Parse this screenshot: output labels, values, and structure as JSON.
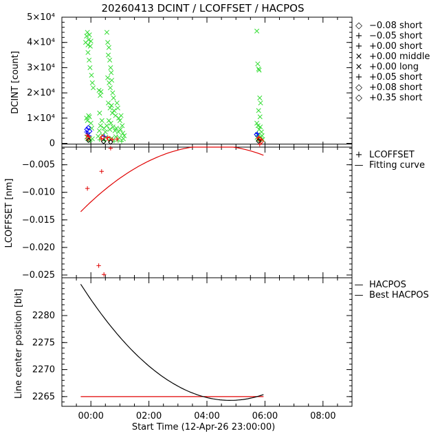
{
  "chart_data": [
    {
      "type": "scatter",
      "panel": "dcint",
      "title": "20260413 DCINT / LCOFFSET / HACPOS",
      "ylabel": "DCINT [count]",
      "ylim": [
        -1500,
        50000
      ],
      "xlim": [
        -1.0,
        9.0
      ],
      "yticks": [
        {
          "value": 0,
          "label": "0"
        },
        {
          "value": 10000,
          "label": "1×10⁴"
        },
        {
          "value": 20000,
          "label": "2×10⁴"
        },
        {
          "value": 30000,
          "label": "3×10⁴"
        },
        {
          "value": 40000,
          "label": "4×10⁴"
        },
        {
          "value": 50000,
          "label": "5×10⁴"
        }
      ],
      "legend": [
        {
          "symbol": "◇",
          "label": "−0.08 short",
          "color": "#0000ff"
        },
        {
          "symbol": "+",
          "label": "−0.05 short",
          "color": "#0000ff"
        },
        {
          "symbol": "+",
          "label": "+0.00 short",
          "color": "#00c800"
        },
        {
          "symbol": "×",
          "label": "+0.00 middle",
          "color": "#00c800"
        },
        {
          "symbol": "×",
          "label": "+0.00 long",
          "color": "#00c800"
        },
        {
          "symbol": "+",
          "label": "+0.05 short",
          "color": "#ff0000"
        },
        {
          "symbol": "◇",
          "label": "+0.08 short",
          "color": "#ff0000"
        },
        {
          "symbol": "◇",
          "label": "+0.35 short",
          "color": "#000000"
        }
      ],
      "series": [
        {
          "name": "+0.00 long",
          "marker": "x",
          "color": "#33dd33",
          "points": [
            [
              -0.18,
              40000
            ],
            [
              -0.15,
              42500
            ],
            [
              -0.12,
              44000
            ],
            [
              -0.1,
              39000
            ],
            [
              -0.08,
              41000
            ],
            [
              -0.05,
              43000
            ],
            [
              -0.02,
              38500
            ],
            [
              0.0,
              40500
            ],
            [
              -0.1,
              36000
            ],
            [
              -0.06,
              33000
            ],
            [
              -0.03,
              30000
            ],
            [
              0.02,
              27000
            ],
            [
              0.05,
              24000
            ],
            [
              0.08,
              22000
            ],
            [
              -0.15,
              10000
            ],
            [
              -0.12,
              9000
            ],
            [
              -0.08,
              11000
            ],
            [
              -0.05,
              10500
            ],
            [
              0.0,
              8000
            ],
            [
              0.03,
              6000
            ],
            [
              0.28,
              21000
            ],
            [
              0.32,
              19000
            ],
            [
              0.35,
              20500
            ],
            [
              0.38,
              9000
            ],
            [
              0.3,
              12000
            ],
            [
              0.33,
              7000
            ],
            [
              0.29,
              5000
            ],
            [
              0.55,
              44000
            ],
            [
              0.58,
              40000
            ],
            [
              0.62,
              38000
            ],
            [
              0.6,
              35000
            ],
            [
              0.65,
              33000
            ],
            [
              0.68,
              30000
            ],
            [
              0.7,
              28000
            ],
            [
              0.58,
              26000
            ],
            [
              0.63,
              24000
            ],
            [
              0.67,
              22000
            ],
            [
              0.72,
              25000
            ],
            [
              0.75,
              20000
            ],
            [
              0.78,
              18000
            ],
            [
              0.6,
              16000
            ],
            [
              0.66,
              14000
            ],
            [
              0.71,
              15000
            ],
            [
              0.74,
              12000
            ],
            [
              0.8,
              13000
            ],
            [
              0.85,
              11000
            ],
            [
              0.9,
              16000
            ],
            [
              0.93,
              14000
            ],
            [
              0.96,
              10000
            ],
            [
              1.0,
              9000
            ],
            [
              1.04,
              11000
            ],
            [
              1.08,
              7000
            ],
            [
              0.62,
              9000
            ],
            [
              0.69,
              8000
            ],
            [
              0.76,
              6500
            ],
            [
              0.83,
              5000
            ],
            [
              0.88,
              6000
            ],
            [
              0.95,
              4500
            ],
            [
              1.02,
              5500
            ],
            [
              1.1,
              4000
            ],
            [
              1.15,
              3000
            ],
            [
              0.45,
              6000
            ],
            [
              0.5,
              4500
            ],
            [
              0.55,
              7000
            ],
            [
              0.65,
              5500
            ],
            [
              5.72,
              44500
            ],
            [
              5.75,
              31500
            ],
            [
              5.78,
              29500
            ],
            [
              5.8,
              29000
            ],
            [
              5.82,
              18000
            ],
            [
              5.85,
              16000
            ],
            [
              5.78,
              13000
            ],
            [
              5.83,
              10500
            ],
            [
              5.72,
              8000
            ],
            [
              5.76,
              7000
            ],
            [
              5.8,
              5500
            ],
            [
              5.84,
              6500
            ],
            [
              5.88,
              4500
            ],
            [
              5.74,
              3500
            ],
            [
              5.9,
              3000
            ]
          ]
        },
        {
          "name": "+0.00 middle",
          "marker": "x",
          "color": "#33dd33",
          "points": [
            [
              -0.14,
              2500
            ],
            [
              -0.09,
              3500
            ],
            [
              -0.04,
              2000
            ],
            [
              0.05,
              1800
            ],
            [
              0.25,
              2800
            ],
            [
              0.4,
              3200
            ],
            [
              0.52,
              2400
            ],
            [
              0.72,
              2000
            ],
            [
              0.86,
              2600
            ],
            [
              0.98,
              2200
            ],
            [
              1.12,
              1800
            ],
            [
              5.73,
              2400
            ],
            [
              5.79,
              2000
            ],
            [
              5.86,
              2600
            ],
            [
              5.92,
              1500
            ]
          ]
        },
        {
          "name": "+0.00 short",
          "marker": "+",
          "color": "#33dd33",
          "points": [
            [
              -0.12,
              1200
            ],
            [
              -0.02,
              900
            ],
            [
              0.3,
              1400
            ],
            [
              0.48,
              1100
            ],
            [
              0.64,
              1300
            ],
            [
              0.8,
              900
            ],
            [
              0.94,
              1000
            ],
            [
              1.06,
              800
            ],
            [
              5.76,
              1300
            ],
            [
              5.84,
              900
            ]
          ]
        },
        {
          "name": "-0.05 short",
          "marker": "+",
          "color": "#0000ff",
          "points": [
            [
              -0.16,
              4500
            ],
            [
              -0.11,
              3800
            ],
            [
              -0.06,
              3000
            ],
            [
              0.46,
              2800
            ],
            [
              5.74,
              3800
            ]
          ]
        },
        {
          "name": "-0.08 short",
          "marker": "diamond",
          "color": "#0000ff",
          "points": [
            [
              -0.14,
              5500
            ],
            [
              -0.09,
              6200
            ],
            [
              -0.04,
              4800
            ],
            [
              5.71,
              3500
            ]
          ]
        },
        {
          "name": "+0.05 short",
          "marker": "+",
          "color": "#ff0000",
          "points": [
            [
              -0.13,
              3200
            ],
            [
              -0.07,
              2600
            ],
            [
              0.36,
              1800
            ],
            [
              0.57,
              2200
            ],
            [
              0.74,
              1500
            ],
            [
              0.9,
              1700
            ],
            [
              5.77,
              2200
            ],
            [
              5.87,
              1500
            ],
            [
              5.82,
              -400
            ]
          ]
        },
        {
          "name": "+0.08 short",
          "marker": "diamond",
          "color": "#ff0000",
          "points": [
            [
              -0.1,
              2000
            ],
            [
              0.4,
              2500
            ],
            [
              0.62,
              1800
            ],
            [
              5.8,
              1800
            ],
            [
              5.88,
              800
            ]
          ]
        },
        {
          "name": "+0.35 short",
          "marker": "diamond",
          "color": "#000000",
          "points": [
            [
              -0.08,
              1200
            ],
            [
              0.44,
              700
            ],
            [
              0.68,
              500
            ],
            [
              5.78,
              900
            ]
          ]
        }
      ]
    },
    {
      "type": "scatter",
      "panel": "lcoffset",
      "ylabel": "LCOFFSET [nm]",
      "ylim": [
        -0.0255,
        -0.0018
      ],
      "xlim": [
        -1.0,
        9.0
      ],
      "yticks": [
        {
          "value": -0.025,
          "label": "−0.025"
        },
        {
          "value": -0.02,
          "label": "−0.020"
        },
        {
          "value": -0.015,
          "label": "−0.015"
        },
        {
          "value": -0.01,
          "label": "−0.010"
        },
        {
          "value": -0.005,
          "label": "−0.005"
        }
      ],
      "legend": [
        {
          "symbol": "+",
          "label": "LCOFFSET",
          "color": "#ff0000"
        },
        {
          "symbol": "—",
          "label": "Fitting curve",
          "color": "#ff0000"
        }
      ],
      "points": [
        [
          -0.12,
          -0.0093
        ],
        [
          0.27,
          -0.0233
        ],
        [
          0.37,
          -0.0062
        ],
        [
          0.45,
          -0.0249
        ],
        [
          0.68,
          -0.002
        ]
      ],
      "fit": {
        "vertex_x": 4.2,
        "vertex_y": -0.0015,
        "a": -0.00058,
        "x_start": -0.35,
        "x_end": 5.95
      }
    },
    {
      "type": "line",
      "panel": "hacpos",
      "ylabel": "Line center position [bit]",
      "xlabel": "Start Time (12-Apr-26 23:00:00)",
      "ylim": [
        2263.2,
        2287.0
      ],
      "xlim": [
        -1.0,
        9.0
      ],
      "xticks": [
        {
          "value": 0,
          "label": "00:00"
        },
        {
          "value": 2,
          "label": "02:00"
        },
        {
          "value": 4,
          "label": "04:00"
        },
        {
          "value": 6,
          "label": "06:00"
        },
        {
          "value": 8,
          "label": "08:00"
        }
      ],
      "yticks": [
        {
          "value": 2265,
          "label": "2265"
        },
        {
          "value": 2270,
          "label": "2270"
        },
        {
          "value": 2275,
          "label": "2275"
        },
        {
          "value": 2280,
          "label": "2280"
        }
      ],
      "legend": [
        {
          "symbol": "—",
          "label": "HACPOS",
          "color": "#ff0000"
        },
        {
          "symbol": "—",
          "label": "Best HACPOS",
          "color": "#000000"
        }
      ],
      "hacpos": {
        "value": 2265.0,
        "x_start": -0.35,
        "x_end": 5.95
      },
      "best": {
        "vertex_x": 4.8,
        "vertex_y": 2264.3,
        "x_start": -0.35,
        "y_start": 2285.8,
        "x_end": 5.95
      }
    }
  ]
}
